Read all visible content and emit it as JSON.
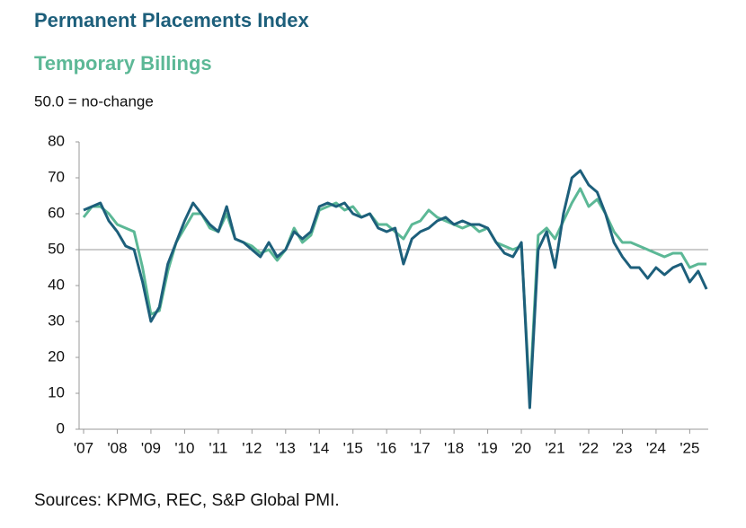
{
  "chart_data": {
    "type": "line",
    "subtitle": "50.0 = no-change",
    "source": "Sources: KPMG, REC, S&P Global PMI.",
    "x": [
      2007,
      2007.25,
      2007.5,
      2007.75,
      2008,
      2008.25,
      2008.5,
      2008.75,
      2009,
      2009.25,
      2009.5,
      2009.75,
      2010,
      2010.25,
      2010.5,
      2010.75,
      2011,
      2011.25,
      2011.5,
      2011.75,
      2012,
      2012.25,
      2012.5,
      2012.75,
      2013,
      2013.25,
      2013.5,
      2013.75,
      2014,
      2014.25,
      2014.5,
      2014.75,
      2015,
      2015.25,
      2015.5,
      2015.75,
      2016,
      2016.25,
      2016.5,
      2016.75,
      2017,
      2017.25,
      2017.5,
      2017.75,
      2018,
      2018.25,
      2018.5,
      2018.75,
      2019,
      2019.25,
      2019.5,
      2019.75,
      2020,
      2020.25,
      2020.5,
      2020.75,
      2021,
      2021.25,
      2021.5,
      2021.75,
      2022,
      2022.25,
      2022.5,
      2022.75,
      2023,
      2023.25,
      2023.5,
      2023.75,
      2024,
      2024.25,
      2024.5,
      2024.75,
      2025,
      2025.25,
      2025.5
    ],
    "series": [
      {
        "name": "Permanent Placements Index",
        "color": "#1d5f7b",
        "values": [
          61,
          62,
          63,
          58,
          55,
          51,
          50,
          41,
          30,
          34,
          46,
          52,
          58,
          63,
          60,
          57,
          55,
          62,
          53,
          52,
          50,
          48,
          52,
          48,
          50,
          55,
          53,
          55,
          62,
          63,
          62,
          63,
          60,
          59,
          60,
          56,
          55,
          56,
          46,
          53,
          55,
          56,
          58,
          59,
          57,
          58,
          57,
          57,
          56,
          52,
          49,
          48,
          52,
          6,
          50,
          55,
          45,
          60,
          70,
          72,
          68,
          66,
          60,
          52,
          48,
          45,
          45,
          42,
          45,
          43,
          45,
          46,
          41,
          44,
          39
        ]
      },
      {
        "name": "Temporary Billings",
        "color": "#5cb896",
        "values": [
          59,
          62,
          62,
          60,
          57,
          56,
          55,
          45,
          32,
          33,
          44,
          52,
          56,
          60,
          60,
          56,
          55,
          60,
          53,
          52,
          51,
          49,
          50,
          47,
          50,
          56,
          52,
          54,
          61,
          62,
          63,
          61,
          62,
          59,
          60,
          57,
          57,
          55,
          53,
          57,
          58,
          61,
          59,
          58,
          57,
          56,
          57,
          55,
          56,
          52,
          51,
          50,
          51,
          9,
          54,
          56,
          53,
          58,
          63,
          67,
          62,
          64,
          60,
          55,
          52,
          52,
          51,
          50,
          49,
          48,
          49,
          49,
          45,
          46,
          46
        ]
      }
    ],
    "xlim": [
      2007,
      2025.55
    ],
    "xticks": [
      {
        "value": 2007,
        "label": "'07"
      },
      {
        "value": 2008,
        "label": "'08"
      },
      {
        "value": 2009,
        "label": "'09"
      },
      {
        "value": 2010,
        "label": "'10"
      },
      {
        "value": 2011,
        "label": "'11"
      },
      {
        "value": 2012,
        "label": "'12"
      },
      {
        "value": 2013,
        "label": "'13"
      },
      {
        "value": 2014,
        "label": "'14"
      },
      {
        "value": 2015,
        "label": "'15"
      },
      {
        "value": 2016,
        "label": "'16"
      },
      {
        "value": 2017,
        "label": "'17"
      },
      {
        "value": 2018,
        "label": "'18"
      },
      {
        "value": 2019,
        "label": "'19"
      },
      {
        "value": 2020,
        "label": "'20"
      },
      {
        "value": 2021,
        "label": "'21"
      },
      {
        "value": 2022,
        "label": "'22"
      },
      {
        "value": 2023,
        "label": "'23"
      },
      {
        "value": 2024,
        "label": "'24"
      },
      {
        "value": 2025,
        "label": "'25"
      }
    ],
    "ylim": [
      0,
      80
    ],
    "yticks": [
      0,
      10,
      20,
      30,
      40,
      50,
      60,
      70,
      80
    ],
    "hline": 50
  }
}
